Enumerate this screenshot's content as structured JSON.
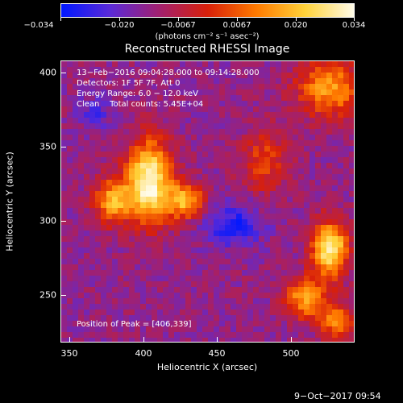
{
  "colorbar": {
    "labels": [
      "−0.034",
      "−0.020",
      "−0.0067",
      "0.0067",
      "0.020",
      "0.034"
    ],
    "units": "(photons cm⁻² s⁻¹ asec⁻²)",
    "colors": [
      "#0018ff",
      "#5a2ad8",
      "#a12070",
      "#d8200a",
      "#ff7a00",
      "#ffd23a",
      "#fffbe8"
    ]
  },
  "title": "Reconstructed RHESSI Image",
  "annotations": {
    "time_range": "13−Feb−2016 09:04:28.000 to 09:14:28.000",
    "detectors": "Detectors: 1F 5F 7F, Att 0",
    "energy": "Energy Range: 6.0 − 12.0 keV",
    "clean": "Clean    Total counts: 5.45E+04",
    "peak": "Position of Peak = [406,339]"
  },
  "axes": {
    "xlabel": "Heliocentric X (arcsec)",
    "ylabel": "Heliocentric Y (arcsec)",
    "xticks": [
      "350",
      "400",
      "450",
      "500"
    ],
    "yticks": [
      "400",
      "350",
      "300",
      "250"
    ]
  },
  "timestamp": "9−Oct−2017 09:54"
}
